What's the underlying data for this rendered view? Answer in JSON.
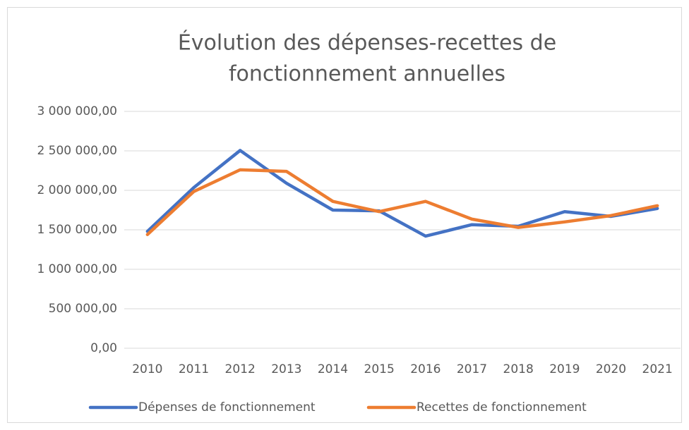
{
  "chart_data": {
    "type": "line",
    "title": [
      "Évolution des dépenses-recettes de",
      "fonctionnement annuelles"
    ],
    "categories": [
      "2010",
      "2011",
      "2012",
      "2013",
      "2014",
      "2015",
      "2016",
      "2017",
      "2018",
      "2019",
      "2020",
      "2021"
    ],
    "series": [
      {
        "name": "Dépenses de fonctionnement",
        "color": "#4472c4",
        "values": [
          1480000,
          2035000,
          2505000,
          2090000,
          1750000,
          1740000,
          1420000,
          1565000,
          1545000,
          1730000,
          1670000,
          1770000
        ]
      },
      {
        "name": "Recettes de fonctionnement",
        "color": "#ed7d31",
        "values": [
          1440000,
          1985000,
          2260000,
          2240000,
          1860000,
          1730000,
          1860000,
          1635000,
          1530000,
          1600000,
          1680000,
          1805000
        ]
      }
    ],
    "ylim": [
      0,
      3000000
    ],
    "yticks": [
      {
        "value": 0,
        "label": "0,00"
      },
      {
        "value": 500000,
        "label": "500 000,00"
      },
      {
        "value": 1000000,
        "label": "1 000 000,00"
      },
      {
        "value": 1500000,
        "label": "1 500 000,00"
      },
      {
        "value": 2000000,
        "label": "2 000 000,00"
      },
      {
        "value": 2500000,
        "label": "2 500 000,00"
      },
      {
        "value": 3000000,
        "label": "3 000 000,00"
      }
    ],
    "grid": true,
    "legend": "bottom"
  }
}
